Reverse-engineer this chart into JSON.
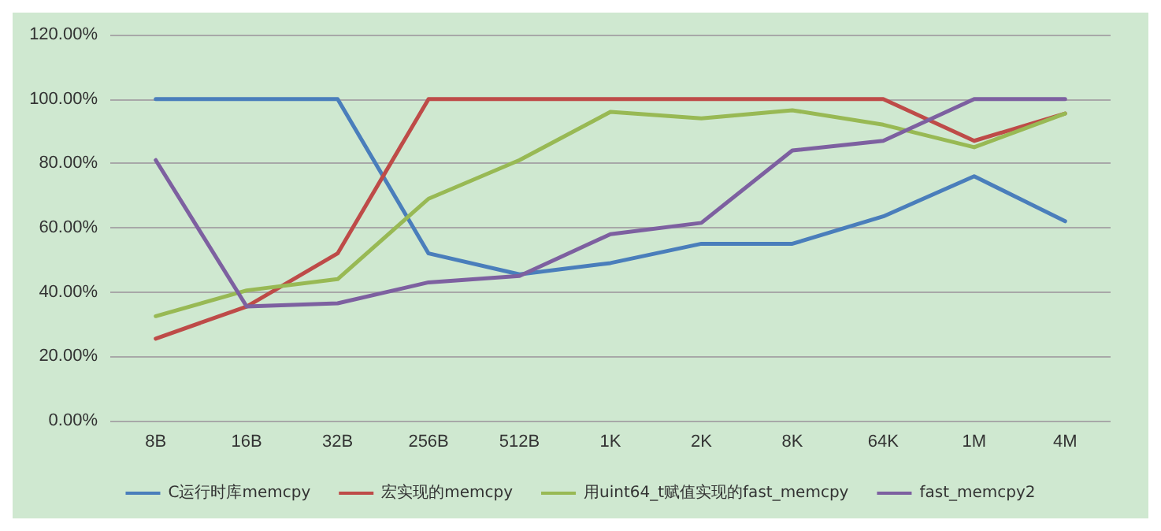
{
  "chart_data": {
    "type": "line",
    "categories": [
      "8B",
      "16B",
      "32B",
      "256B",
      "512B",
      "1K",
      "2K",
      "8K",
      "64K",
      "1M",
      "4M"
    ],
    "series": [
      {
        "name": "C运行时库memcpy",
        "color": "#4a7ebb",
        "values": [
          100,
          100,
          100,
          52,
          45.5,
          49,
          55,
          55,
          63.5,
          76,
          62
        ]
      },
      {
        "name": "宏实现的memcpy",
        "color": "#be4b48",
        "values": [
          25.5,
          35.5,
          52,
          100,
          100,
          100,
          100,
          100,
          100,
          87,
          95.5
        ]
      },
      {
        "name": "用uint64_t赋值实现的fast_memcpy",
        "color": "#98b954",
        "values": [
          32.5,
          40.5,
          44,
          69,
          81,
          96,
          94,
          96.5,
          92,
          85,
          95.5
        ]
      },
      {
        "name": "fast_memcpy2",
        "color": "#7d60a0",
        "values": [
          81,
          35.5,
          36.5,
          43,
          45,
          58,
          61.5,
          84,
          87,
          100,
          100
        ]
      }
    ],
    "ylim": [
      0,
      120
    ],
    "yticks": [
      {
        "value": 0,
        "label": "0.00%"
      },
      {
        "value": 20,
        "label": "20.00%"
      },
      {
        "value": 40,
        "label": "40.00%"
      },
      {
        "value": 60,
        "label": "60.00%"
      },
      {
        "value": 80,
        "label": "80.00%"
      },
      {
        "value": 100,
        "label": "100.00%"
      },
      {
        "value": 120,
        "label": "120.00%"
      }
    ],
    "grid": "y",
    "legend": "bottom",
    "marker": "none",
    "line_style": "solid"
  }
}
